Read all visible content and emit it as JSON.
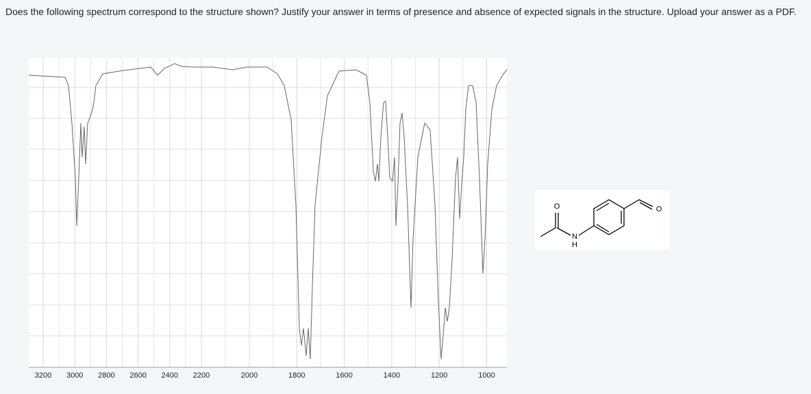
{
  "question": "Does the following spectrum correspond to the structure shown? Justify your answer in terms of presence and absence of expected signals in the structure. Upload your answer as a PDF.",
  "spectrum": {
    "xticks": [
      3200,
      3000,
      2800,
      2600,
      2400,
      2200,
      2000,
      1800,
      1600,
      1400,
      1200,
      1000
    ]
  },
  "structure": {
    "atoms": [
      "O",
      "N",
      "H",
      "O"
    ]
  }
}
